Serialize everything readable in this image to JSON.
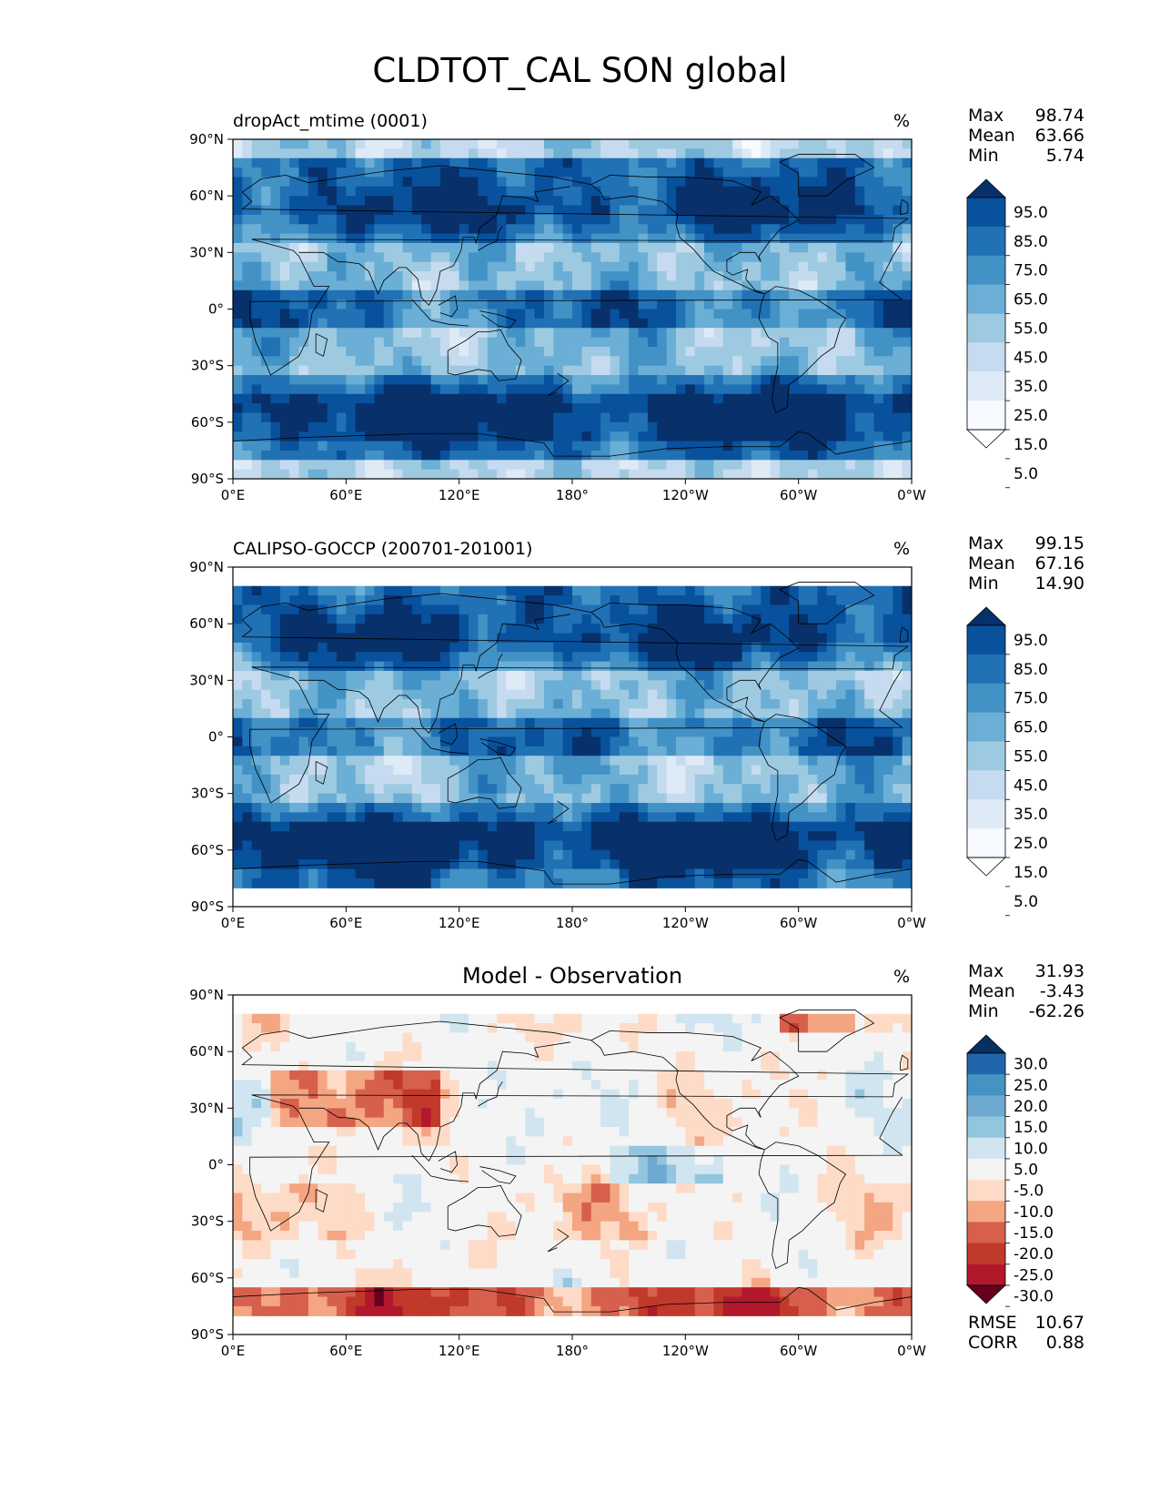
{
  "title": "CLDTOT_CAL SON global",
  "lon_ticks": [
    "0°E",
    "60°E",
    "120°E",
    "180°",
    "120°W",
    "60°W",
    "0°W"
  ],
  "lat_ticks": [
    "90°N",
    "60°N",
    "30°N",
    "0°",
    "30°S",
    "60°S",
    "90°S"
  ],
  "panels": [
    {
      "title": "dropAct_mtime (0001)",
      "title_style": "left",
      "units": "%",
      "stats": [
        {
          "label": "Max",
          "value": "98.74"
        },
        {
          "label": "Mean",
          "value": "63.66"
        },
        {
          "label": "Min",
          "value": "5.74"
        }
      ],
      "colorbar": {
        "labels": [
          "95.0",
          "85.0",
          "75.0",
          "65.0",
          "55.0",
          "45.0",
          "35.0",
          "25.0",
          "15.0",
          "5.0"
        ],
        "colors": [
          "#08306b",
          "#08519c",
          "#2171b5",
          "#4292c6",
          "#6baed6",
          "#9ecae1",
          "#c6dbef",
          "#deebf7",
          "#f7fbff",
          "#ffffff"
        ]
      }
    },
    {
      "title": "CALIPSO-GOCCP (200701-201001)",
      "title_style": "left",
      "units": "%",
      "stats": [
        {
          "label": "Max",
          "value": "99.15"
        },
        {
          "label": "Mean",
          "value": "67.16"
        },
        {
          "label": "Min",
          "value": "14.90"
        }
      ],
      "colorbar": {
        "labels": [
          "95.0",
          "85.0",
          "75.0",
          "65.0",
          "55.0",
          "45.0",
          "35.0",
          "25.0",
          "15.0",
          "5.0"
        ],
        "colors": [
          "#08306b",
          "#08519c",
          "#2171b5",
          "#4292c6",
          "#6baed6",
          "#9ecae1",
          "#c6dbef",
          "#deebf7",
          "#f7fbff",
          "#ffffff"
        ]
      }
    },
    {
      "title": "Model - Observation",
      "title_style": "center",
      "units": "%",
      "stats": [
        {
          "label": "Max",
          "value": "31.93"
        },
        {
          "label": "Mean",
          "value": "-3.43"
        },
        {
          "label": "Min",
          "value": "-62.26"
        }
      ],
      "colorbar": {
        "labels": [
          "30.0",
          "25.0",
          "20.0",
          "15.0",
          "10.0",
          "5.0",
          "-5.0",
          "-10.0",
          "-15.0",
          "-20.0",
          "-25.0",
          "-30.0"
        ],
        "colors": [
          "#053061",
          "#2166ac",
          "#4393c3",
          "#6ea9d0",
          "#92c5de",
          "#d1e5f0",
          "#f4f4f4",
          "#fddbc7",
          "#f4a582",
          "#d6604d",
          "#c0392b",
          "#b2182b",
          "#67001f"
        ]
      },
      "footer": [
        {
          "label": "RMSE",
          "value": "10.67"
        },
        {
          "label": "CORR",
          "value": "0.88"
        }
      ]
    }
  ],
  "chart_data": [
    {
      "type": "heatmap",
      "title": "dropAct_mtime (0001)",
      "variable": "CLDTOT_CAL",
      "units": "%",
      "x_range": [
        0,
        360
      ],
      "y_range": [
        -90,
        90
      ],
      "levels": [
        5,
        15,
        25,
        35,
        45,
        55,
        65,
        75,
        85,
        95
      ],
      "stats": {
        "max": 98.74,
        "mean": 63.66,
        "min": 5.74
      }
    },
    {
      "type": "heatmap",
      "title": "CALIPSO-GOCCP (200701-201001)",
      "variable": "CLDTOT_CAL",
      "units": "%",
      "x_range": [
        0,
        360
      ],
      "y_range": [
        -90,
        90
      ],
      "levels": [
        5,
        15,
        25,
        35,
        45,
        55,
        65,
        75,
        85,
        95
      ],
      "stats": {
        "max": 99.15,
        "mean": 67.16,
        "min": 14.9
      }
    },
    {
      "type": "heatmap",
      "title": "Model - Observation",
      "units": "%",
      "x_range": [
        0,
        360
      ],
      "y_range": [
        -90,
        90
      ],
      "levels": [
        -30,
        -25,
        -20,
        -15,
        -10,
        -5,
        5,
        10,
        15,
        20,
        25,
        30
      ],
      "stats": {
        "max": 31.93,
        "mean": -3.43,
        "min": -62.26,
        "rmse": 10.67,
        "corr": 0.88
      }
    }
  ]
}
